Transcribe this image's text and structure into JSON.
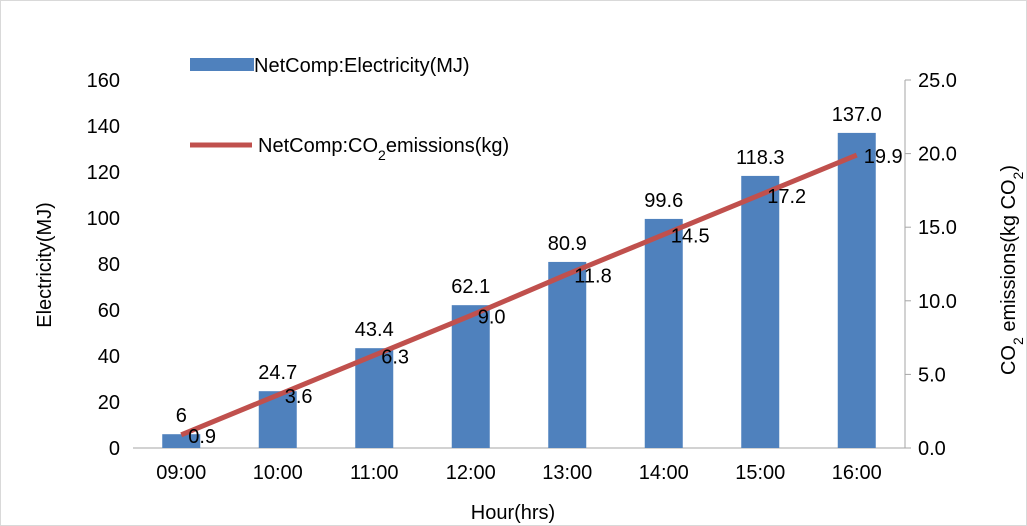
{
  "chart_data": {
    "type": "bar",
    "categories": [
      "09:00",
      "10:00",
      "11:00",
      "12:00",
      "13:00",
      "14:00",
      "15:00",
      "16:00"
    ],
    "series": [
      {
        "name": "NetComp:Electricity(MJ)",
        "type": "bar",
        "axis": "left",
        "values": [
          6,
          24.7,
          43.4,
          62.1,
          80.9,
          99.6,
          118.3,
          137.0
        ],
        "labels": [
          "6",
          "24.7",
          "43.4",
          "62.1",
          "80.9",
          "99.6",
          "118.3",
          "137.0"
        ]
      },
      {
        "name_parts": [
          "NetComp:CO",
          "2",
          "emissions(kg)"
        ],
        "type": "line",
        "axis": "right",
        "values": [
          0.9,
          3.6,
          6.3,
          9.0,
          11.8,
          14.5,
          17.2,
          19.9
        ],
        "labels": [
          "0.9",
          "3.6",
          "6.3",
          "9.0",
          "11.8",
          "14.5",
          "17.2",
          "19.9"
        ]
      }
    ],
    "xlabel": "Hour(hrs)",
    "ylabel": "Electricity(MJ)",
    "y2label_parts": [
      "CO",
      "2",
      " emissions(kg CO",
      "2",
      ")"
    ],
    "ylim": [
      0,
      160
    ],
    "yticks": [
      "0",
      "20",
      "40",
      "60",
      "80",
      "100",
      "120",
      "140",
      "160"
    ],
    "y2lim": [
      0,
      25
    ],
    "y2ticks": [
      "0.0",
      "5.0",
      "10.0",
      "15.0",
      "20.0",
      "25.0"
    ],
    "grid": false,
    "legend": "top-left",
    "colors": {
      "bar": "#4f81bd",
      "line": "#c0504d"
    }
  }
}
